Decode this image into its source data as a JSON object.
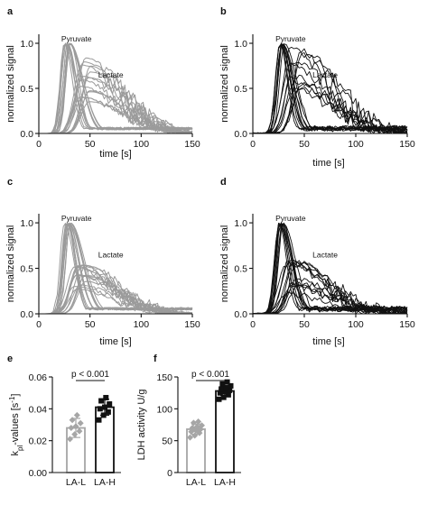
{
  "colors": {
    "gray": "#9b9b9b",
    "black": "#111111",
    "light_marker": "#a6a6a6"
  },
  "chart_data": [
    {
      "panel": "a",
      "type": "line",
      "color": "gray",
      "xlabel": "time [s]",
      "ylabel": "normalized signal",
      "xlim": [
        0,
        150
      ],
      "ylim": [
        0,
        1.1
      ],
      "xticks": [
        "0",
        "50",
        "100",
        "150"
      ],
      "yticks": [
        "0.0",
        "0.5",
        "1.0"
      ],
      "annotations": [
        "Pyruvate",
        "Lactate"
      ],
      "series_summary": {
        "pyruvate_curves": 12,
        "lactate_curves": 14,
        "pyruvate_peak_time_s": 28,
        "lactate_peak_time_s": 45,
        "lactate_peak_range": [
          0.3,
          0.95
        ]
      }
    },
    {
      "panel": "b",
      "type": "line",
      "color": "black",
      "xlabel": "time [s]",
      "ylabel": "normalized signal",
      "xlim": [
        0,
        150
      ],
      "ylim": [
        0,
        1.1
      ],
      "xticks": [
        "0",
        "50",
        "100",
        "150"
      ],
      "yticks": [
        "0.0",
        "0.5",
        "1.0"
      ],
      "annotations": [
        "Pyruvate",
        "Lactate"
      ],
      "series_summary": {
        "pyruvate_curves": 10,
        "lactate_curves": 10,
        "pyruvate_peak_time_s": 28,
        "lactate_peak_time_s": 42,
        "lactate_peak_range": [
          0.4,
          0.95
        ]
      }
    },
    {
      "panel": "c",
      "type": "line",
      "color": "gray",
      "xlabel": "time [s]",
      "ylabel": "normalized signal",
      "xlim": [
        0,
        150
      ],
      "ylim": [
        0,
        1.1
      ],
      "xticks": [
        "0",
        "50",
        "100",
        "150"
      ],
      "yticks": [
        "0.0",
        "0.5",
        "1.0"
      ],
      "annotations": [
        "Pyruvate",
        "Lactate"
      ],
      "series_summary": {
        "pyruvate_curves": 12,
        "lactate_curves": 14,
        "pyruvate_peak_time_s": 28,
        "lactate_peak_time_s": 40,
        "lactate_peak_range": [
          0.25,
          0.55
        ]
      }
    },
    {
      "panel": "d",
      "type": "line",
      "color": "black",
      "xlabel": "time [s]",
      "ylabel": "normalized signal",
      "xlim": [
        0,
        150
      ],
      "ylim": [
        0,
        1.1
      ],
      "xticks": [
        "0",
        "50",
        "100",
        "150"
      ],
      "yticks": [
        "0.0",
        "0.5",
        "1.0"
      ],
      "annotations": [
        "Pyruvate",
        "Lactate"
      ],
      "series_summary": {
        "pyruvate_curves": 10,
        "lactate_curves": 12,
        "pyruvate_peak_time_s": 28,
        "lactate_peak_time_s": 38,
        "lactate_peak_range": [
          0.2,
          0.6
        ]
      }
    },
    {
      "panel": "e",
      "type": "bar",
      "ylabel_main": "k",
      "ylabel_sub": "pl",
      "ylabel_rest": "-values [s",
      "ylabel_sup": "-1",
      "ylabel_end": "]",
      "categories": [
        "LA-L",
        "LA-H"
      ],
      "values": [
        0.028,
        0.041
      ],
      "errors": [
        0.006,
        0.005
      ],
      "ylim": [
        0,
        0.06
      ],
      "yticks": [
        "0.00",
        "0.02",
        "0.04",
        "0.06"
      ],
      "points": [
        [
          0.021,
          0.024,
          0.026,
          0.028,
          0.029,
          0.031,
          0.033,
          0.036
        ],
        [
          0.033,
          0.036,
          0.038,
          0.04,
          0.041,
          0.043,
          0.045,
          0.047
        ]
      ],
      "marker_color": [
        "light_marker",
        "black"
      ],
      "bar_edge": [
        "light_marker",
        "black"
      ],
      "significance": "p < 0.001"
    },
    {
      "panel": "f",
      "type": "bar",
      "ylabel": "LDH activity U/g",
      "categories": [
        "LA-L",
        "LA-H"
      ],
      "values": [
        68,
        128
      ],
      "errors": [
        8,
        7
      ],
      "ylim": [
        0,
        150
      ],
      "yticks": [
        "0",
        "50",
        "100",
        "150"
      ],
      "points": [
        [
          55,
          58,
          62,
          64,
          66,
          68,
          70,
          72,
          74,
          78,
          80
        ],
        [
          115,
          118,
          122,
          125,
          127,
          129,
          131,
          133,
          136,
          139,
          142
        ]
      ],
      "marker_color": [
        "light_marker",
        "black"
      ],
      "bar_edge": [
        "light_marker",
        "black"
      ],
      "significance": "p < 0.001"
    }
  ]
}
